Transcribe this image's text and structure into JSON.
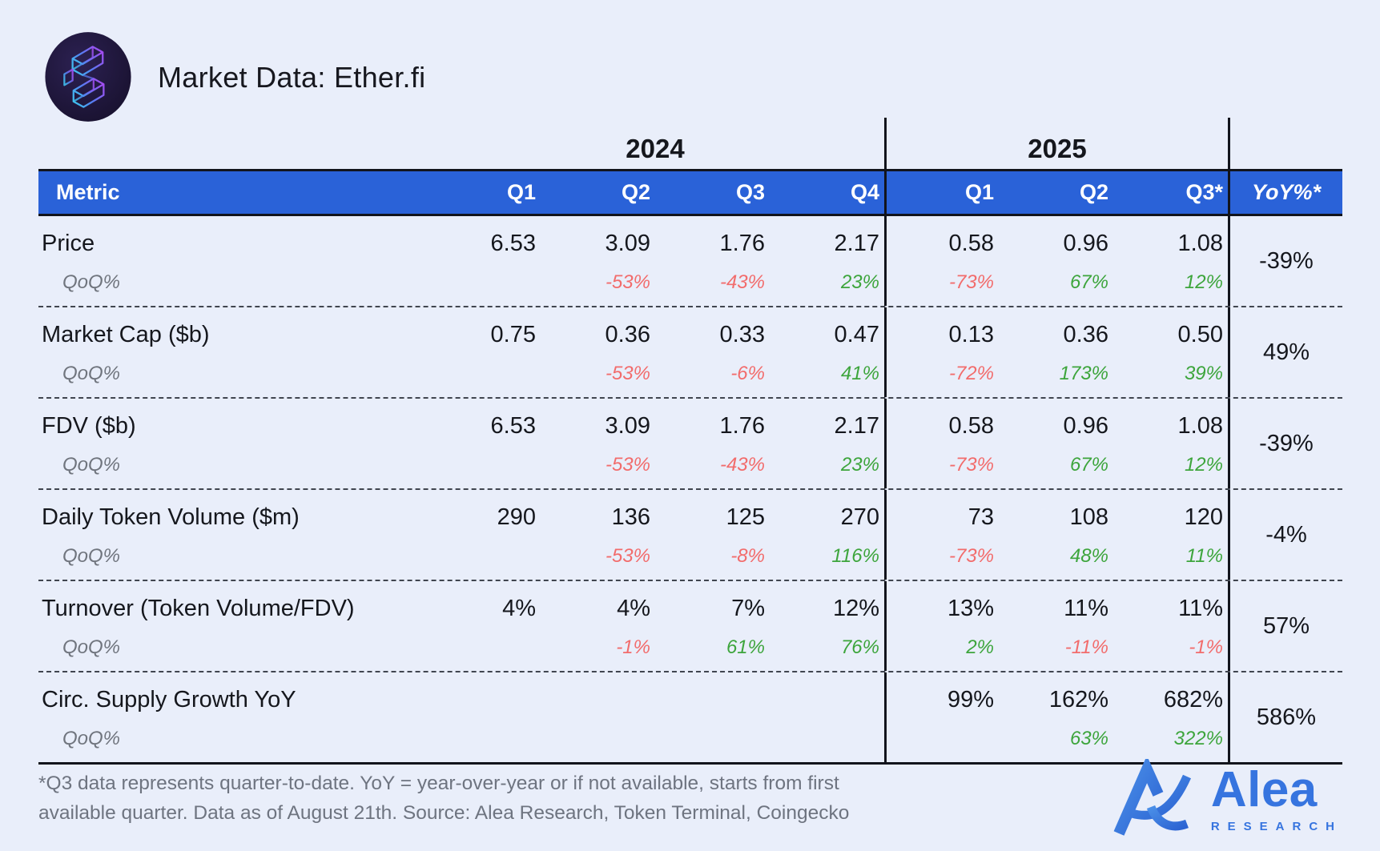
{
  "header": {
    "title": "Market Data: Ether.fi",
    "logo": "etherfi-cube-logo"
  },
  "chart_data": {
    "type": "table",
    "title": "Market Data: Ether.fi",
    "year_groups": [
      {
        "label": "2024",
        "quarters": 4
      },
      {
        "label": "2025",
        "quarters": 3
      }
    ],
    "columns": [
      "Metric",
      "Q1",
      "Q2",
      "Q3",
      "Q4",
      "Q1",
      "Q2",
      "Q3*",
      "YoY%*"
    ],
    "qoq_label": "QoQ%",
    "rows": [
      {
        "metric": "Price",
        "values": [
          "6.53",
          "3.09",
          "1.76",
          "2.17",
          "0.58",
          "0.96",
          "1.08"
        ],
        "qoq": [
          "",
          "-53%",
          "-43%",
          "23%",
          "-73%",
          "67%",
          "12%"
        ],
        "yoy": "-39%"
      },
      {
        "metric": "Market Cap ($b)",
        "values": [
          "0.75",
          "0.36",
          "0.33",
          "0.47",
          "0.13",
          "0.36",
          "0.50"
        ],
        "qoq": [
          "",
          "-53%",
          "-6%",
          "41%",
          "-72%",
          "173%",
          "39%"
        ],
        "yoy": "49%"
      },
      {
        "metric": "FDV ($b)",
        "values": [
          "6.53",
          "3.09",
          "1.76",
          "2.17",
          "0.58",
          "0.96",
          "1.08"
        ],
        "qoq": [
          "",
          "-53%",
          "-43%",
          "23%",
          "-73%",
          "67%",
          "12%"
        ],
        "yoy": "-39%"
      },
      {
        "metric": "Daily Token Volume ($m)",
        "values": [
          "290",
          "136",
          "125",
          "270",
          "73",
          "108",
          "120"
        ],
        "qoq": [
          "",
          "-53%",
          "-8%",
          "116%",
          "-73%",
          "48%",
          "11%"
        ],
        "yoy": "-4%"
      },
      {
        "metric": "Turnover (Token Volume/FDV)",
        "values": [
          "4%",
          "4%",
          "7%",
          "12%",
          "13%",
          "11%",
          "11%"
        ],
        "qoq": [
          "",
          "-1%",
          "61%",
          "76%",
          "2%",
          "-11%",
          "-1%"
        ],
        "yoy": "57%"
      },
      {
        "metric": "Circ. Supply Growth YoY",
        "values": [
          "",
          "",
          "",
          "",
          "99%",
          "162%",
          "682%"
        ],
        "qoq": [
          "",
          "",
          "",
          "",
          "",
          "63%",
          "322%"
        ],
        "yoy": "586%"
      }
    ]
  },
  "footer": {
    "lines": [
      "*Q3 data represents quarter-to-date. YoY = year-over-year or if not available, starts from first",
      "available quarter. Data as of August 21th. Source: Alea Research, Token Terminal, Coingecko"
    ],
    "brand": {
      "name": "Alea",
      "subname": "RESEARCH"
    }
  },
  "colors": {
    "background": "#e9eefa",
    "header_blue": "#2a62d8",
    "negative": "#f26c6c",
    "positive": "#3da53c",
    "brand_blue": "#3674df",
    "text_dark": "#15171d"
  }
}
